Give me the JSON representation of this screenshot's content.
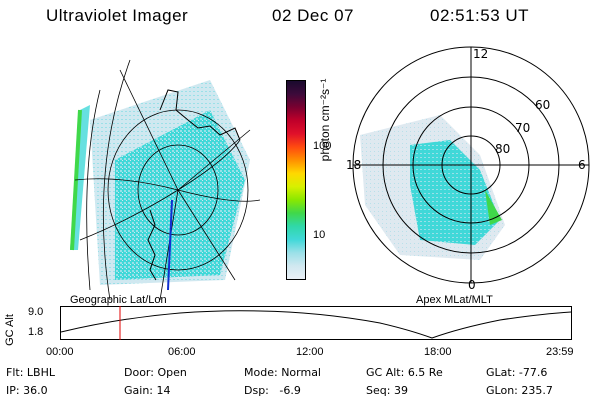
{
  "header": {
    "instrument": "Ultraviolet Imager",
    "date": "02 Dec 07",
    "time": "02:51:53 UT"
  },
  "left_panel": {
    "caption": "Geographic Lat/Lon"
  },
  "right_panel": {
    "caption": "Apex MLat/MLT",
    "mlt_labels": [
      "12",
      "18",
      "6",
      "0"
    ],
    "lat_labels": [
      "60",
      "70",
      "80"
    ]
  },
  "colorbar": {
    "unit_label": "photon cm⁻²s⁻¹",
    "ticks": [
      "100",
      "10"
    ],
    "colors": [
      "#1a0a2e",
      "#3d0a3a",
      "#7a0030",
      "#c0002a",
      "#e0102a",
      "#ff4a10",
      "#ff9000",
      "#ffd800",
      "#d8f000",
      "#8ae800",
      "#40d84a",
      "#30d8a8",
      "#40d8d8",
      "#9ae0e8",
      "#d0e8f0",
      "#eaf0f6"
    ]
  },
  "altitude_plot": {
    "ylabel": "GC Alt",
    "yticks": [
      "9.0",
      "1.8"
    ],
    "xticks": [
      "00:00",
      "06:00",
      "12:00",
      "18:00",
      "23:59"
    ],
    "marker_color": "#e00000"
  },
  "metadata": {
    "row1": [
      {
        "label": "Flt:",
        "value": "LBHL"
      },
      {
        "label": "Door:",
        "value": "Open"
      },
      {
        "label": "Mode:",
        "value": "Normal"
      },
      {
        "label": "GC Alt:",
        "value": "6.5 Re"
      },
      {
        "label": "GLat:",
        "value": "-77.6"
      }
    ],
    "row2": [
      {
        "label": "IP:",
        "value": "36.0"
      },
      {
        "label": "Gain:",
        "value": "14"
      },
      {
        "label": "Dsp:",
        "value": "-6.9"
      },
      {
        "label": "Seq:",
        "value": "39"
      },
      {
        "label": "GLon:",
        "value": "235.7"
      }
    ]
  }
}
